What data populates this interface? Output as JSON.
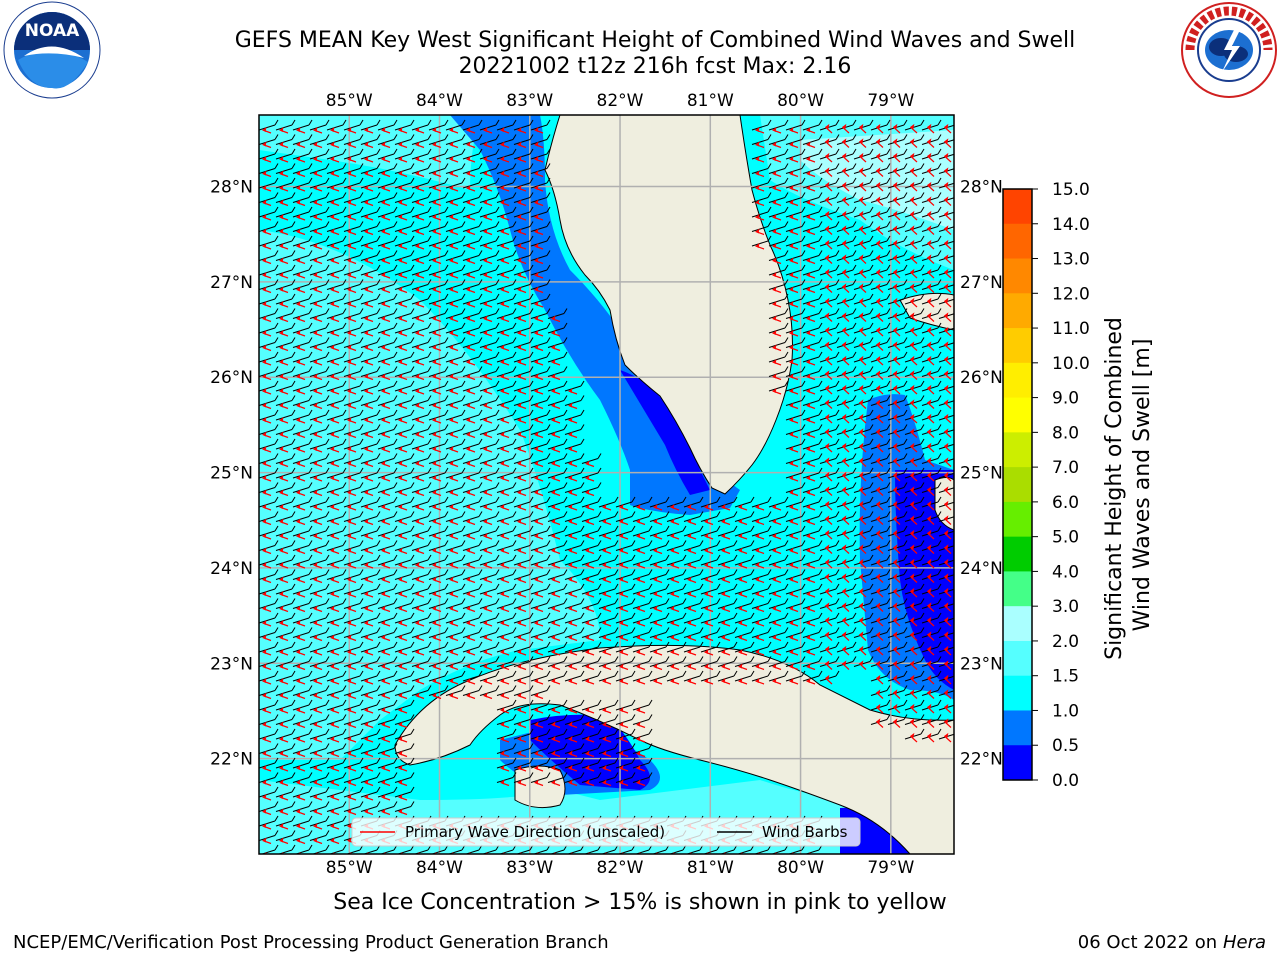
{
  "header": {
    "title_line1": "GEFS MEAN Key West Significant Height of Combined Wind Waves and Swell",
    "title_line2": "20221002 t12z 216h fcst   Max: 2.16"
  },
  "logos": {
    "noaa": {
      "text": "NOAA",
      "ring_text": "NATIONAL OCEANIC AND ATMOSPHERIC ADMINISTRATION · U.S. DEPARTMENT OF COMMERCE"
    },
    "nws": {
      "ring_text": "NATIONAL WEATHER SERVICE"
    }
  },
  "chart_data": {
    "type": "map-contour",
    "lon_ticks": [
      "85°W",
      "84°W",
      "83°W",
      "82°W",
      "81°W",
      "80°W",
      "79°W"
    ],
    "lat_ticks": [
      "28°N",
      "27°N",
      "26°N",
      "25°N",
      "24°N",
      "23°N",
      "22°N"
    ],
    "extent": {
      "lon": [
        -86.0,
        -78.3
      ],
      "lat": [
        21.0,
        28.75
      ]
    },
    "colorbar": {
      "label_line1": "Significant Height of Combined",
      "label_line2": "Wind Waves and Swell [m]",
      "ticks": [
        "15.0",
        "14.0",
        "13.0",
        "12.0",
        "11.0",
        "10.0",
        "9.0",
        "8.0",
        "7.0",
        "6.0",
        "5.0",
        "4.0",
        "3.0",
        "2.0",
        "1.5",
        "1.0",
        "0.5",
        "0.0"
      ],
      "colors_top_to_bottom": [
        "#ff0000",
        "#ff2200",
        "#ff4400",
        "#ff6600",
        "#ff8800",
        "#ffaa00",
        "#ffcc00",
        "#ffee00",
        "#ffff00",
        "#ccee00",
        "#aadd00",
        "#66ee00",
        "#00cc00",
        "#44ff88",
        "#aaffff",
        "#55ffff",
        "#00ffff",
        "#0077ff",
        "#0000ff"
      ]
    },
    "legend": [
      {
        "label": "Primary Wave Direction (unscaled)",
        "color": "#ff0000"
      },
      {
        "label": "Wind Barbs",
        "color": "#000000"
      }
    ],
    "max_value": 2.16,
    "colors": {
      "land": "#efeedf",
      "coast": "#000000",
      "grid": "#b0b0b0",
      "arrows": "#ff0000",
      "barbs": "#000000"
    }
  },
  "caption": "Sea Ice Concentration > 15% is shown in pink to yellow",
  "footer": {
    "left": "NCEP/EMC/Verification Post Processing Product Generation Branch",
    "right_prefix": "06 Oct 2022 on ",
    "right_host": "Hera"
  }
}
